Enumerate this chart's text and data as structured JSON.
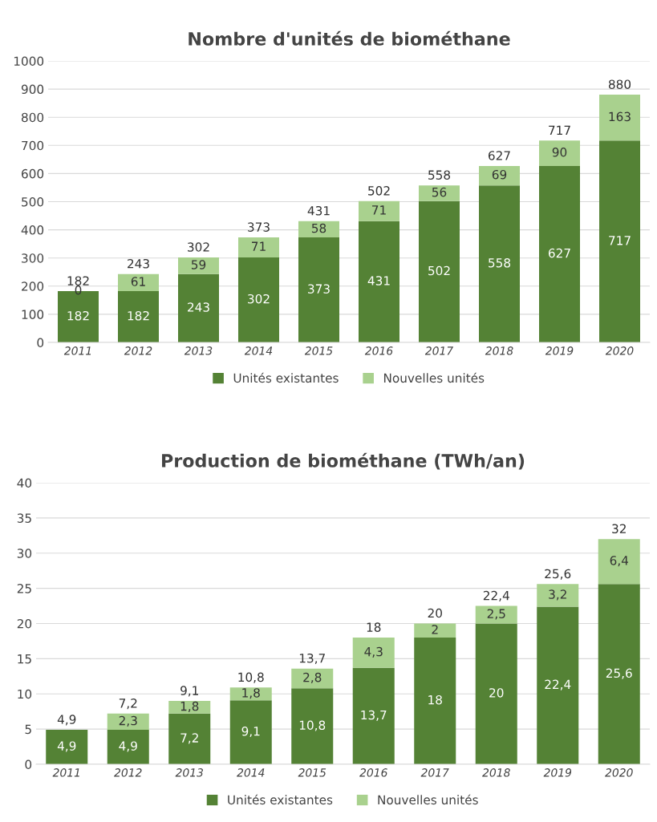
{
  "chart_data": [
    {
      "type": "bar",
      "title": "Nombre d'unités de biométhane",
      "stacked": true,
      "grid": "y",
      "legend": "bottom",
      "categories": [
        "2011",
        "2012",
        "2013",
        "2014",
        "2015",
        "2016",
        "2017",
        "2018",
        "2019",
        "2020"
      ],
      "series": [
        {
          "name": "Unités existantes",
          "color": "#548235",
          "values": [
            182,
            182,
            243,
            302,
            373,
            431,
            502,
            558,
            627,
            717
          ],
          "value_labels": [
            "182",
            "182",
            "243",
            "302",
            "373",
            "431",
            "502",
            "558",
            "627",
            "717"
          ]
        },
        {
          "name": "Nouvelles unités",
          "color": "#a9d18e",
          "values": [
            0,
            61,
            59,
            71,
            58,
            71,
            56,
            69,
            90,
            163
          ],
          "value_labels": [
            "0",
            "61",
            "59",
            "71",
            "58",
            "71",
            "56",
            "69",
            "90",
            "163"
          ]
        }
      ],
      "totals": [
        "182",
        "243",
        "302",
        "373",
        "431",
        "502",
        "558",
        "627",
        "717",
        "880"
      ],
      "ylim": [
        0,
        1000
      ],
      "yticks": [
        0,
        100,
        200,
        300,
        400,
        500,
        600,
        700,
        800,
        900,
        1000
      ]
    },
    {
      "type": "bar",
      "title": "Production de biométhane (TWh/an)",
      "stacked": true,
      "grid": "y",
      "legend": "bottom",
      "categories": [
        "2011",
        "2012",
        "2013",
        "2014",
        "2015",
        "2016",
        "2017",
        "2018",
        "2019",
        "2020"
      ],
      "series": [
        {
          "name": "Unités existantes",
          "color": "#548235",
          "values": [
            4.9,
            4.9,
            7.2,
            9.1,
            10.8,
            13.7,
            18,
            20,
            22.4,
            25.6
          ],
          "value_labels": [
            "4,9",
            "4,9",
            "7,2",
            "9,1",
            "10,8",
            "13,7",
            "18",
            "20",
            "22,4",
            "25,6"
          ]
        },
        {
          "name": "Nouvelles unités",
          "color": "#a9d18e",
          "values": [
            null,
            2.3,
            1.8,
            1.8,
            2.8,
            4.3,
            2,
            2.5,
            3.2,
            6.4
          ],
          "value_labels": [
            null,
            "2,3",
            "1,8",
            "1,8",
            "2,8",
            "4,3",
            "2",
            "2,5",
            "3,2",
            "6,4"
          ]
        }
      ],
      "totals": [
        "4,9",
        "7,2",
        "9,1",
        "10,8",
        "13,7",
        "18",
        "20",
        "22,4",
        "25,6",
        "32"
      ],
      "ylim": [
        0,
        40
      ],
      "yticks": [
        0,
        5,
        10,
        15,
        20,
        25,
        30,
        35,
        40
      ]
    }
  ]
}
